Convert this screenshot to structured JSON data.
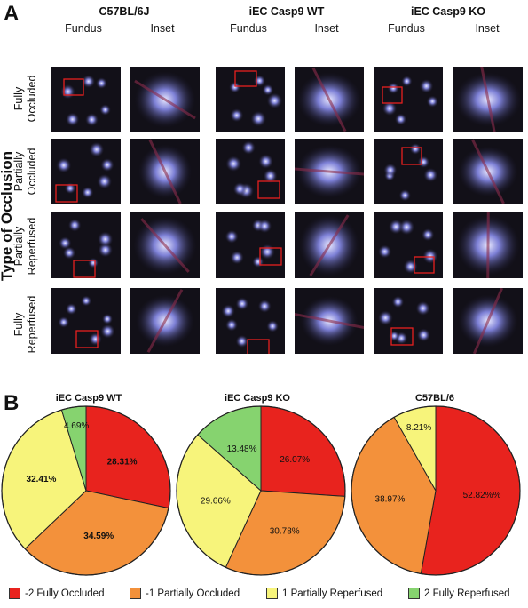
{
  "panel_a": {
    "letter": "A",
    "groups": [
      "C57BL/6J",
      "iEC Casp9  WT",
      "iEC Casp9 KO"
    ],
    "col_labels": [
      "Fundus",
      "Inset",
      "Fundus",
      "Inset",
      "Fundus",
      "Inset"
    ],
    "side_title": "Type of Occlusion",
    "rows": [
      {
        "line1": "Fully",
        "line2": "Occluded"
      },
      {
        "line1": "Partially",
        "line2": "Occluded"
      },
      {
        "line1": "Partially",
        "line2": "Reperfused"
      },
      {
        "line1": "Fully",
        "line2": "Reperfused"
      }
    ]
  },
  "panel_b": {
    "letter": "B"
  },
  "colors": {
    "fully_occluded": "#e8231e",
    "partially_occluded": "#f3913b",
    "partially_reperfused": "#f7f47b",
    "fully_reperfused": "#86d36f"
  },
  "legend": [
    {
      "label": "-2 Fully Occluded",
      "color": "#e8231e"
    },
    {
      "label": "-1 Partially Occluded",
      "color": "#f3913b"
    },
    {
      "label": "1 Partially Reperfused",
      "color": "#f7f47b"
    },
    {
      "label": "2 Fully Reperfused",
      "color": "#86d36f"
    }
  ],
  "chart_data": [
    {
      "type": "pie",
      "title": "iEC Casp9 WT",
      "slices": [
        {
          "category": "-2 Fully Occluded",
          "value": 28.31,
          "label": "28.31%",
          "color": "#e8231e",
          "bold": true
        },
        {
          "category": "-1 Partially Occluded",
          "value": 34.59,
          "label": "34.59%",
          "color": "#f3913b",
          "bold": true
        },
        {
          "category": "1 Partially Reperfused",
          "value": 32.41,
          "label": "32.41%",
          "color": "#f7f47b",
          "bold": true
        },
        {
          "category": "2 Fully Reperfused",
          "value": 4.69,
          "label": "4.69%",
          "color": "#86d36f",
          "bold": false
        }
      ]
    },
    {
      "type": "pie",
      "title": "iEC Casp9 KO",
      "slices": [
        {
          "category": "-2 Fully Occluded",
          "value": 26.07,
          "label": "26.07%",
          "color": "#e8231e",
          "bold": false
        },
        {
          "category": "-1 Partially Occluded",
          "value": 30.78,
          "label": "30.78%",
          "color": "#f3913b",
          "bold": false
        },
        {
          "category": "1 Partially Reperfused",
          "value": 29.66,
          "label": "29.66%",
          "color": "#f7f47b",
          "bold": false
        },
        {
          "category": "2 Fully Reperfused",
          "value": 13.48,
          "label": "13.48%",
          "color": "#86d36f",
          "bold": false
        }
      ]
    },
    {
      "type": "pie",
      "title": "C57BL/6",
      "slices": [
        {
          "category": "-2 Fully Occluded",
          "value": 52.82,
          "label": "52.82%%",
          "color": "#e8231e",
          "bold": false
        },
        {
          "category": "-1 Partially Occluded",
          "value": 38.97,
          "label": "38.97%",
          "color": "#f3913b",
          "bold": false
        },
        {
          "category": "1 Partially Reperfused",
          "value": 8.21,
          "label": "8.21%",
          "color": "#f7f47b",
          "bold": false
        }
      ]
    }
  ]
}
